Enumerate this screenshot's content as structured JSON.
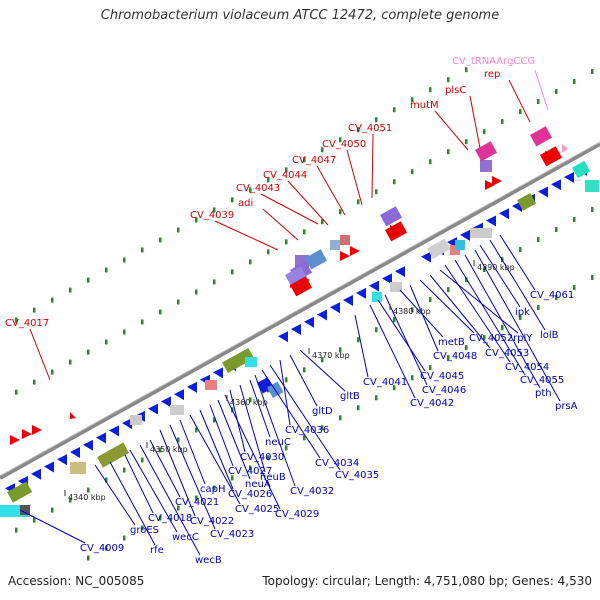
{
  "title": "Chromobacterium violaceum ATCC 12472, complete genome",
  "footer": {
    "accession": "Accession: NC_005085",
    "summary": "Topology: circular; Length: 4,751,080 bp; Genes: 4,530"
  },
  "colors": {
    "forward_label": "#d40000",
    "reverse_label": "#0000bb",
    "rna_label": "#ff88cc",
    "backbone": "#999999"
  },
  "ticks": [
    "4340 kbp",
    "4350 kbp",
    "4360 kbp",
    "4370 kbp",
    "4380 kbp",
    "4390 kbp"
  ],
  "forward_genes": [
    "CV_4017",
    "CV_4039",
    "adi",
    "CV_4043",
    "CV_4044",
    "CV_4047",
    "CV_4050",
    "CV_4051",
    "mutM",
    "plsC",
    "rep"
  ],
  "rna_genes": [
    "CV_tRNAArgCCG"
  ],
  "reverse_genes": [
    "CV_4009",
    "groES",
    "rfe",
    "CV_4018",
    "wecC",
    "wecB",
    "CV_4021",
    "CV_4022",
    "CV_4023",
    "capH",
    "CV_4025",
    "CV_4026",
    "CV_4027",
    "neuA",
    "CV_4029",
    "CV_4030",
    "neuB",
    "neuC",
    "CV_4032",
    "CV_4034",
    "CV_4035",
    "CV_4036",
    "gltD",
    "gltB",
    "CV_4041",
    "CV_4042",
    "CV_4045",
    "CV_4046",
    "metB",
    "CV_4048",
    "CV_4052",
    "CV_4053",
    "rplY",
    "CV_4054",
    "CV_4055",
    "pth",
    "prsA",
    "ipk",
    "lolB",
    "CV_4061"
  ]
}
